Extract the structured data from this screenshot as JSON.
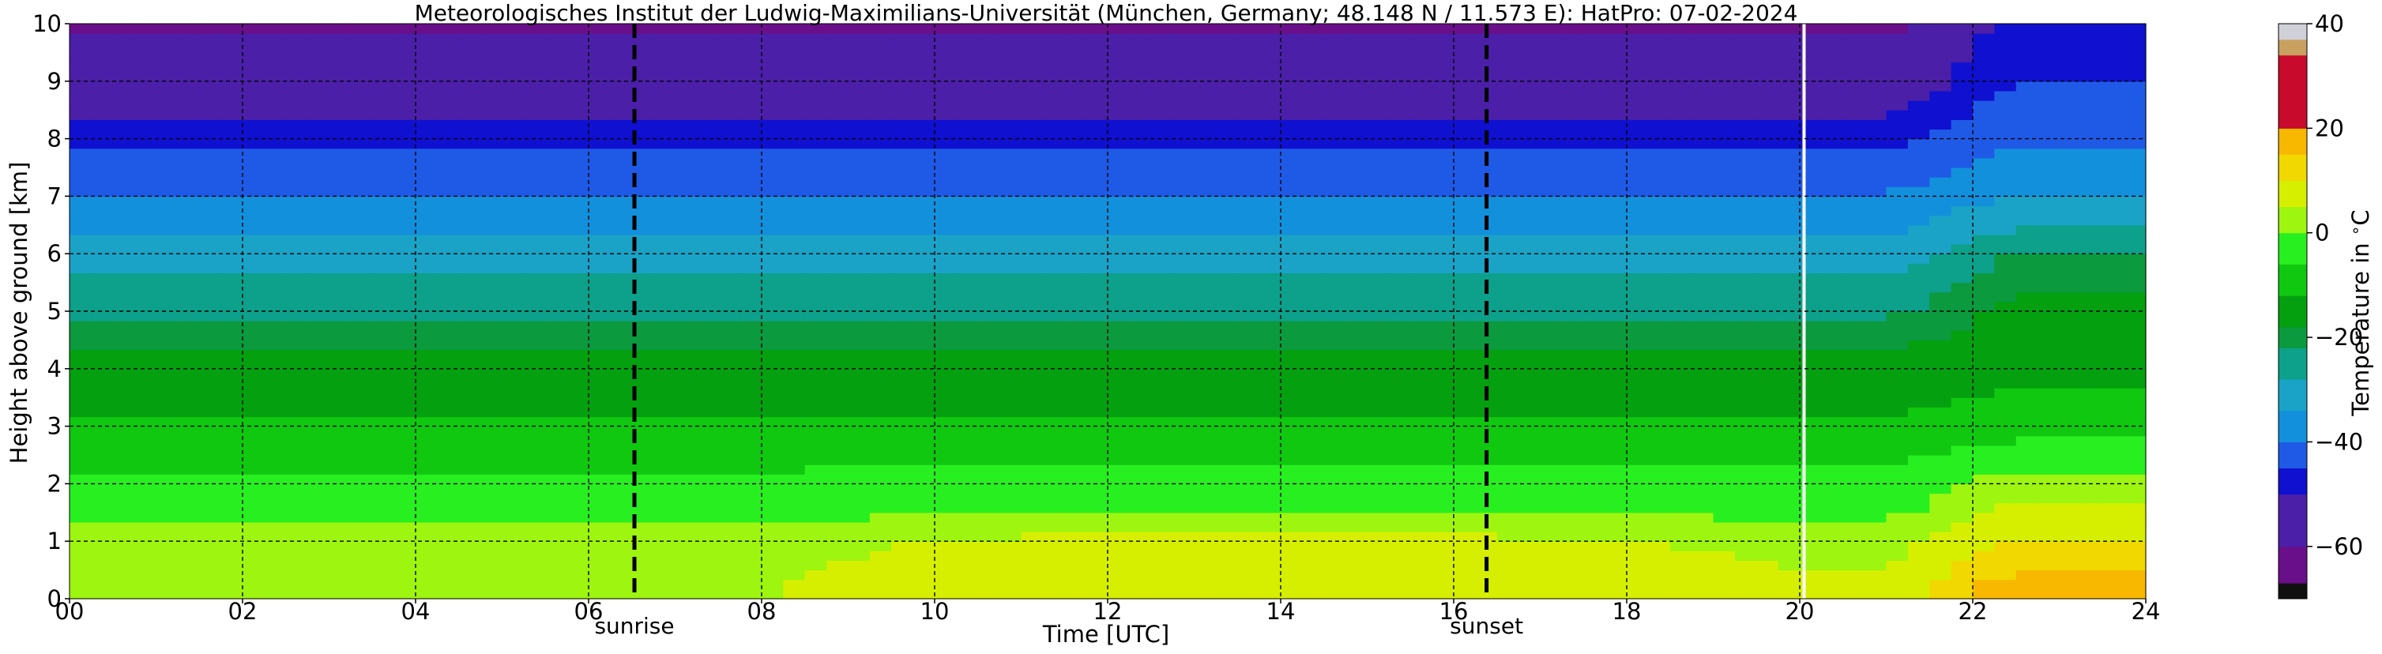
{
  "chart_data": {
    "type": "heatmap",
    "title": "Meteorologisches Institut der Ludwig-Maximilians-Universität (München, Germany; 48.148 N / 11.573 E):    HatPro: 07-02-2024",
    "xlabel": "Time [UTC]",
    "ylabel": "Height above ground [km]",
    "xlim": [
      0,
      24
    ],
    "ylim": [
      0,
      10
    ],
    "x_tick_labels": [
      "00",
      "02",
      "04",
      "06",
      "08",
      "10",
      "12",
      "14",
      "16",
      "18",
      "20",
      "22",
      "24"
    ],
    "y_tick_labels": [
      "0",
      "1",
      "2",
      "3",
      "4",
      "5",
      "6",
      "7",
      "8",
      "9",
      "10"
    ],
    "grid": true,
    "annotations": [
      {
        "label": "sunrise",
        "x": 6.53
      },
      {
        "label": "sunset",
        "x": 16.38
      }
    ],
    "data_gap_x": 20.05,
    "colorbar": {
      "label": "Temperature in $^\\circ$C",
      "range": [
        -70,
        40
      ],
      "tick_labels": [
        "40",
        "20",
        "0",
        "−20",
        "−40",
        "−60"
      ],
      "tick_values": [
        40,
        20,
        0,
        -20,
        -40,
        -60
      ],
      "colors": [
        {
          "from": -70,
          "to": -67,
          "color": "#101010"
        },
        {
          "from": -67,
          "to": -60,
          "color": "#6a0f8a"
        },
        {
          "from": -60,
          "to": -50,
          "color": "#4b1fa8"
        },
        {
          "from": -50,
          "to": -45,
          "color": "#1010d0"
        },
        {
          "from": -45,
          "to": -40,
          "color": "#1f5ae6"
        },
        {
          "from": -40,
          "to": -34,
          "color": "#1390dc"
        },
        {
          "from": -34,
          "to": -28,
          "color": "#1aa3c6"
        },
        {
          "from": -28,
          "to": -22,
          "color": "#0da08a"
        },
        {
          "from": -22,
          "to": -18,
          "color": "#0b9a3e"
        },
        {
          "from": -18,
          "to": -12,
          "color": "#05a010"
        },
        {
          "from": -12,
          "to": -6,
          "color": "#10c810"
        },
        {
          "from": -6,
          "to": 0,
          "color": "#28ef20"
        },
        {
          "from": 0,
          "to": 5,
          "color": "#9ef510"
        },
        {
          "from": 5,
          "to": 10,
          "color": "#d6ef00"
        },
        {
          "from": 10,
          "to": 15,
          "color": "#f0d800"
        },
        {
          "from": 15,
          "to": 20,
          "color": "#f8b800"
        },
        {
          "from": 20,
          "to": 34,
          "color": "#c80a2c"
        },
        {
          "from": 34,
          "to": 37,
          "color": "#c8a060"
        },
        {
          "from": 37,
          "to": 40,
          "color": "#d0d0d8"
        }
      ]
    },
    "temperature_profile": {
      "heights_km": [
        0,
        0.5,
        1,
        1.5,
        2,
        2.5,
        3,
        3.5,
        4,
        4.5,
        5,
        5.5,
        6,
        6.5,
        7,
        7.5,
        8,
        8.5,
        9,
        9.5,
        10
      ],
      "early_day_00_06": [
        4,
        3,
        2,
        -2,
        -5,
        -8,
        -11,
        -14,
        -17,
        -19,
        -23,
        -27,
        -32,
        -36,
        -40,
        -43,
        -47,
        -51,
        -55,
        -57,
        -62
      ],
      "midday_10_16": [
        10,
        8,
        6,
        0,
        -3,
        -7,
        -11,
        -14,
        -17,
        -19,
        -23,
        -27,
        -32,
        -36,
        -40,
        -43,
        -47,
        -51,
        -55,
        -57,
        -62
      ],
      "late_22_24": [
        20,
        14,
        10,
        6,
        2,
        -4,
        -8,
        -11,
        -14,
        -16,
        -17,
        -19,
        -22,
        -29,
        -34,
        -38,
        -41,
        -43,
        -45,
        -47,
        -49
      ]
    }
  }
}
